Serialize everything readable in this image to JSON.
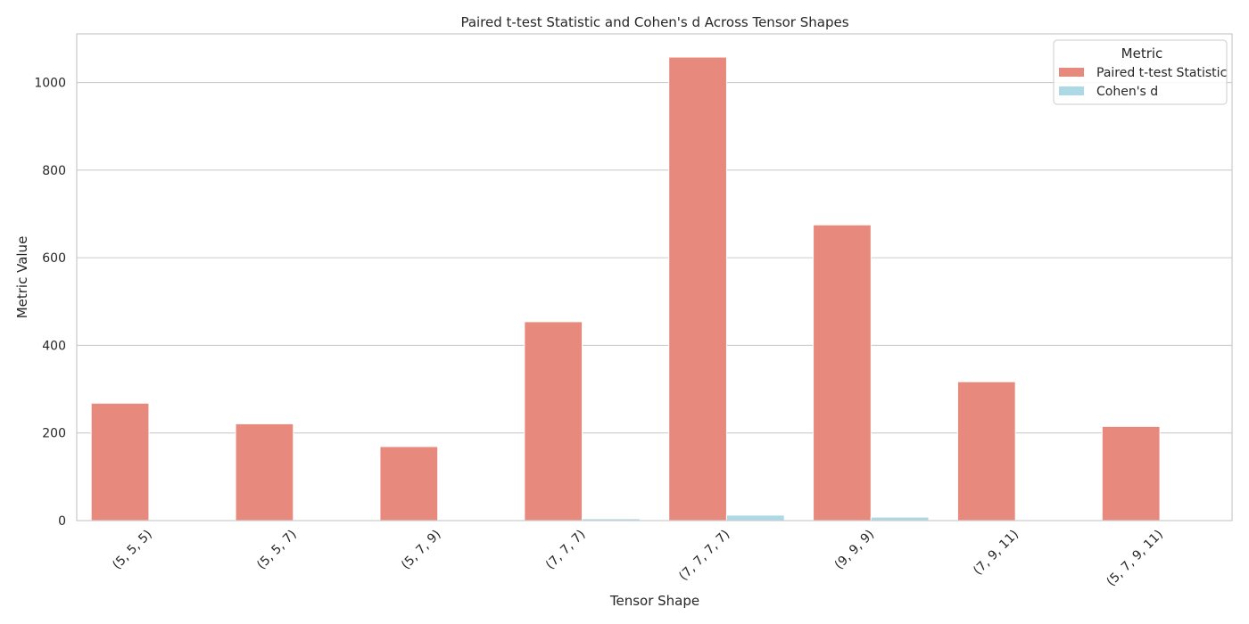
{
  "chart_data": {
    "type": "bar",
    "title": "Paired t-test Statistic and Cohen's d Across Tensor Shapes",
    "xlabel": "Tensor Shape",
    "ylabel": "Metric Value",
    "categories": [
      "(5, 5, 5)",
      "(5, 5, 7)",
      "(5, 7, 9)",
      "(7, 7, 7)",
      "(7, 7, 7, 7)",
      "(9, 9, 9)",
      "(7, 9, 11)",
      "(5, 7, 9, 11)"
    ],
    "series": [
      {
        "name": "Paired t-test Statistic",
        "color": "#e8897d",
        "values": [
          268,
          221,
          169,
          454,
          1058,
          675,
          317,
          215
        ]
      },
      {
        "name": "Cohen's d",
        "color": "#add8e6",
        "values": [
          1.5,
          1.2,
          1.0,
          4.2,
          12.5,
          8.0,
          1.3,
          1.1
        ]
      }
    ],
    "ylim": [
      0,
      1111
    ],
    "yticks": [
      0,
      200,
      400,
      600,
      800,
      1000
    ],
    "tick_rotation_deg": 45,
    "grid": "horizontal",
    "legend": {
      "title": "Metric",
      "placement": "top-right"
    }
  }
}
